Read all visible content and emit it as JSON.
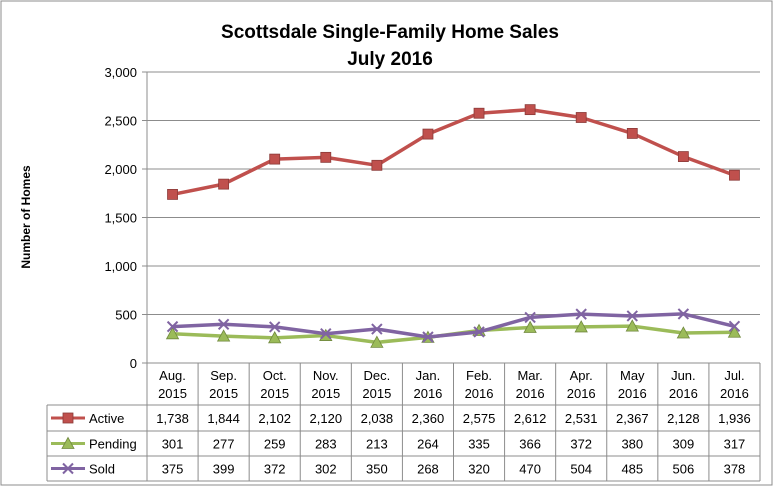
{
  "chart_data": {
    "type": "line",
    "title": "Scottsdale Single-Family Home Sales",
    "subtitle": "July 2016",
    "xlabel": "",
    "ylabel": "Number of Homes",
    "ylim": [
      0,
      3000
    ],
    "yticks": [
      "0",
      "500",
      "1,000",
      "1,500",
      "2,000",
      "2,500",
      "3,000"
    ],
    "grid": true,
    "legend": "data-table-left",
    "categories": [
      [
        "Aug.",
        "2015"
      ],
      [
        "Sep.",
        "2015"
      ],
      [
        "Oct.",
        "2015"
      ],
      [
        "Nov.",
        "2015"
      ],
      [
        "Dec.",
        "2015"
      ],
      [
        "Jan.",
        "2016"
      ],
      [
        "Feb.",
        "2016"
      ],
      [
        "Mar.",
        "2016"
      ],
      [
        "Apr.",
        "2016"
      ],
      [
        "May",
        "2016"
      ],
      [
        "Jun.",
        "2016"
      ],
      [
        "Jul.",
        "2016"
      ]
    ],
    "series": [
      {
        "name": "Active",
        "color": "#c0504d",
        "marker": "square",
        "values": [
          1738,
          1844,
          2102,
          2120,
          2038,
          2360,
          2575,
          2612,
          2531,
          2367,
          2128,
          1936
        ],
        "labels": [
          "1,738",
          "1,844",
          "2,102",
          "2,120",
          "2,038",
          "2,360",
          "2,575",
          "2,612",
          "2,531",
          "2,367",
          "2,128",
          "1,936"
        ]
      },
      {
        "name": "Pending",
        "color": "#9bbb59",
        "marker": "triangle",
        "values": [
          301,
          277,
          259,
          283,
          213,
          264,
          335,
          366,
          372,
          380,
          309,
          317
        ],
        "labels": [
          "301",
          "277",
          "259",
          "283",
          "213",
          "264",
          "335",
          "366",
          "372",
          "380",
          "309",
          "317"
        ]
      },
      {
        "name": "Sold",
        "color": "#8064a2",
        "marker": "x",
        "values": [
          375,
          399,
          372,
          302,
          350,
          268,
          320,
          470,
          504,
          485,
          506,
          378
        ],
        "labels": [
          "375",
          "399",
          "372",
          "302",
          "350",
          "268",
          "320",
          "470",
          "504",
          "485",
          "506",
          "378"
        ]
      }
    ]
  }
}
